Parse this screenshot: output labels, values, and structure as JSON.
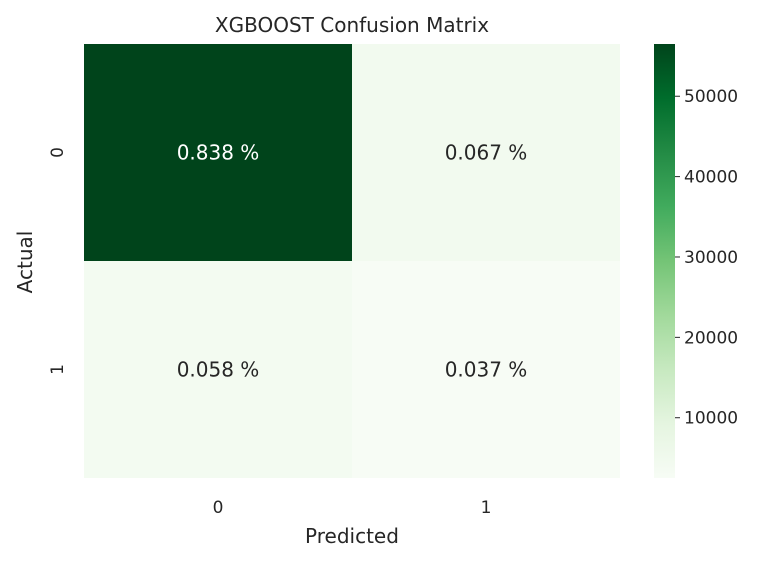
{
  "chart_data": {
    "type": "heatmap",
    "title": "XGBOOST Confusion Matrix",
    "xlabel": "Predicted",
    "ylabel": "Actual",
    "x_categories": [
      "0",
      "1"
    ],
    "y_categories": [
      "0",
      "1"
    ],
    "cell_labels": [
      [
        "0.838 %",
        "0.067 %"
      ],
      [
        "0.058 %",
        "0.037 %"
      ]
    ],
    "cell_values": [
      [
        56500,
        4500
      ],
      [
        3900,
        2500
      ]
    ],
    "colormap": "Greens",
    "colorbar": {
      "min": 2500,
      "max": 56500,
      "ticks": [
        10000,
        20000,
        30000,
        40000,
        50000
      ]
    },
    "grid": false
  }
}
